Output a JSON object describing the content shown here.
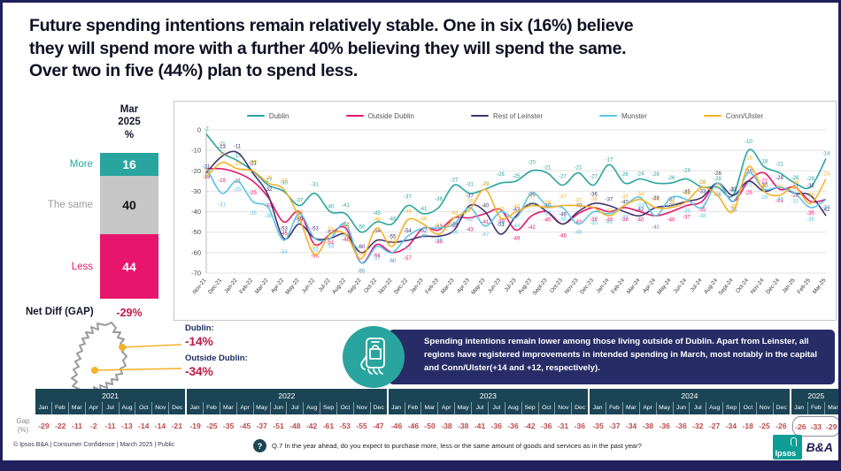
{
  "title": {
    "lines": [
      "Future spending intentions remain relatively stable. One in six  (16%) believe",
      "they will spend more with a further 40% believing they will spend the same.",
      "Over two in five (44%)  plan to spend less."
    ]
  },
  "colors": {
    "navy": "#20205C",
    "teal": "#2AA49E",
    "pink": "#E8156D",
    "purple": "#413470",
    "cyan": "#5BC4E6",
    "yellow": "#F3B229",
    "gray": "#C6C6C6",
    "crimson": "#C11A4B",
    "table_header": "#1B4555",
    "table_value_red": "#BF4D4D",
    "callout_navy": "#272C66"
  },
  "chart_data": [
    {
      "id": "regional_trend",
      "type": "line",
      "title": "",
      "ylabel": "",
      "xlabel": "",
      "ylim": [
        -70,
        0
      ],
      "yticks": [
        0,
        -10,
        -20,
        -30,
        -40,
        -50,
        -60,
        -70
      ],
      "grid": true,
      "legend_position": "top",
      "x": [
        "Nov-21",
        "Dec-21",
        "Jan-22",
        "Feb-22",
        "Mar-22",
        "Apr-22",
        "May-22",
        "Jun-22",
        "Jul-22",
        "Aug-22",
        "Sep-22",
        "Oct-22",
        "Nov-22",
        "Dec-22",
        "Jan-23",
        "Feb-23",
        "Mar-23",
        "Apr-23",
        "May-23",
        "Jun-23",
        "Jul-23",
        "Aug-23",
        "Sept-23",
        "Oct-23",
        "Nov-23",
        "Dec-23",
        "Jan-24",
        "Feb-24",
        "Mar-24",
        "Apr-24",
        "May-24",
        "Jun-24",
        "Jul-24",
        "Aug-24",
        "Sept-24",
        "Oct-24",
        "Nov-24",
        "Dec-24",
        "Jan-25",
        "Feb-25",
        "Mar-25"
      ],
      "series": [
        {
          "name": "Dublin",
          "color": "#2AA49E",
          "values": [
            -2,
            -11,
            -15,
            -20,
            -27,
            -30,
            -37,
            -31,
            -40,
            -41,
            -50,
            -45,
            -46,
            -37,
            -41,
            -38,
            -27,
            -31,
            -29,
            -26,
            -25,
            -20,
            -21,
            -27,
            -21,
            -27,
            -17,
            -26,
            -24,
            -26,
            -26,
            -24,
            -28,
            -28,
            -32,
            -10,
            -18,
            -21,
            -26,
            -28,
            -14
          ]
        },
        {
          "name": "Outside Dublin",
          "color": "#E8156D",
          "values": [
            -19,
            -19,
            -21,
            -25,
            -33,
            -45,
            -40,
            -56,
            -51,
            -48,
            -65,
            -56,
            -60,
            -57,
            -48,
            -49,
            -43,
            -43,
            -41,
            -39,
            -49,
            -42,
            -40,
            -46,
            -41,
            -38,
            -40,
            -38,
            -40,
            -42,
            -40,
            -37,
            -35,
            -26,
            -35,
            -25,
            -21,
            -29,
            -28,
            -35,
            -34
          ]
        },
        {
          "name": "Rest of Leinster",
          "color": "#413470",
          "values": [
            -21,
            -13,
            -11,
            -21,
            -32,
            -53,
            -46,
            -53,
            -53,
            -51,
            -60,
            -54,
            -55,
            -54,
            -52,
            -52,
            -49,
            -37,
            -40,
            -51,
            -42,
            -36,
            -40,
            -46,
            -40,
            -36,
            -37,
            -40,
            -42,
            -38,
            -37,
            -35,
            -33,
            -26,
            -32,
            -25,
            -30,
            -28,
            -31,
            -32,
            -42
          ]
        },
        {
          "name": "Munster",
          "color": "#5BC4E6",
          "values": [
            -18,
            -31,
            -25,
            -35,
            -38,
            -54,
            -41,
            -53,
            -53,
            -46,
            -65,
            -57,
            -60,
            -52,
            -48,
            -48,
            -46,
            -38,
            -47,
            -40,
            -43,
            -31,
            -37,
            -38,
            -46,
            -40,
            -41,
            -37,
            -33,
            -42,
            -33,
            -34,
            -38,
            -26,
            -35,
            -21,
            -29,
            -28,
            -31,
            -38,
            -34
          ]
        },
        {
          "name": "Conn/Ulster",
          "color": "#F3B229",
          "values": [
            -23,
            -16,
            -19,
            -20,
            -26,
            -29,
            -43,
            -61,
            -51,
            -51,
            -63,
            -48,
            -57,
            -44,
            -46,
            -51,
            -43,
            -39,
            -29,
            -43,
            -40,
            -37,
            -38,
            -37,
            -37,
            -38,
            -42,
            -37,
            -34,
            -38,
            -38,
            -35,
            -28,
            -32,
            -40,
            -18,
            -30,
            -32,
            -28,
            -36,
            -24
          ]
        }
      ]
    },
    {
      "id": "mar2025_intentions",
      "type": "bar",
      "stacked": true,
      "header_lines": [
        "Mar",
        "2025",
        "%"
      ],
      "categories": [
        "More",
        "The same",
        "Less"
      ],
      "values": [
        16,
        40,
        44
      ],
      "segment_colors": [
        "#2AA49E",
        "#C6C6C6",
        "#E8156D"
      ],
      "value_text_colors": [
        "#ffffff",
        "#111111",
        "#ffffff"
      ],
      "label_colors": [
        "#2AA49E",
        "#9B9B9B",
        "#E8156D"
      ],
      "net_diff_label": "Net Diff (GAP)",
      "net_diff_value": "-29%"
    },
    {
      "id": "gap_by_month",
      "type": "table",
      "row_label_line1": "Gap",
      "row_label_line2": "(%)",
      "years": [
        {
          "label": "2021",
          "months": [
            "Jan",
            "Feb",
            "Mar",
            "Apr",
            "Jul",
            "Aug",
            "Oct",
            "Nov",
            "Dec"
          ],
          "values": [
            -29,
            -22,
            -11,
            -2,
            -11,
            -13,
            -14,
            -14,
            -21
          ],
          "highlight": false
        },
        {
          "label": "2022",
          "months": [
            "Jan",
            "Feb",
            "Mar",
            "Apr",
            "May",
            "Jun",
            "Jul",
            "Aug",
            "Sep",
            "Oct",
            "Nov",
            "Dec"
          ],
          "values": [
            -19,
            -25,
            -35,
            -45,
            -37,
            -51,
            -48,
            -42,
            -61,
            -53,
            -55,
            -47
          ],
          "highlight": false
        },
        {
          "label": "2023",
          "months": [
            "Jan",
            "Feb",
            "Mar",
            "Apr",
            "May",
            "Jul",
            "Jul",
            "Aug",
            "Sep",
            "Oct",
            "Nov",
            "Dec"
          ],
          "values": [
            -46,
            -46,
            -50,
            -38,
            -38,
            -41,
            -36,
            -36,
            -42,
            -36,
            -31,
            -36
          ],
          "highlight": false
        },
        {
          "label": "2024",
          "months": [
            "Jan",
            "Feb",
            "Mar",
            "Apr",
            "May",
            "Jun",
            "Jul",
            "Aug",
            "Sep",
            "Oct",
            "Nov",
            "Dec"
          ],
          "values": [
            -35,
            -37,
            -34,
            -38,
            -36,
            -36,
            -32,
            -27,
            -34,
            -18,
            -25,
            -26
          ],
          "highlight": false
        },
        {
          "label": "2025",
          "months": [
            "Jan",
            "Feb",
            "Mar"
          ],
          "values": [
            -26,
            -33,
            -29
          ],
          "highlight": true
        }
      ]
    }
  ],
  "map_section": {
    "dublin_label": "Dublin:",
    "dublin_value": "-14%",
    "outside_label": "Outside Dublin:",
    "outside_value": "-34%"
  },
  "callout": {
    "text": "Spending intentions remain lower among those living outside of Dublin. Apart from Leinster, all regions have registered improvements in intended spending in March, most notably in the capital and Conn/Ulster(+14 and +12, respectively)."
  },
  "footer": {
    "copyright": "© Ipsos B&A | Consumer Confidence | March 2025 |  Public",
    "question_mark": "?",
    "question": "Q.7 In the year ahead, do you expect to purchase more, less or the same amount of goods and services as in the past year?",
    "logo_ipsos": "Ipsos",
    "logo_ba": "B&A"
  }
}
